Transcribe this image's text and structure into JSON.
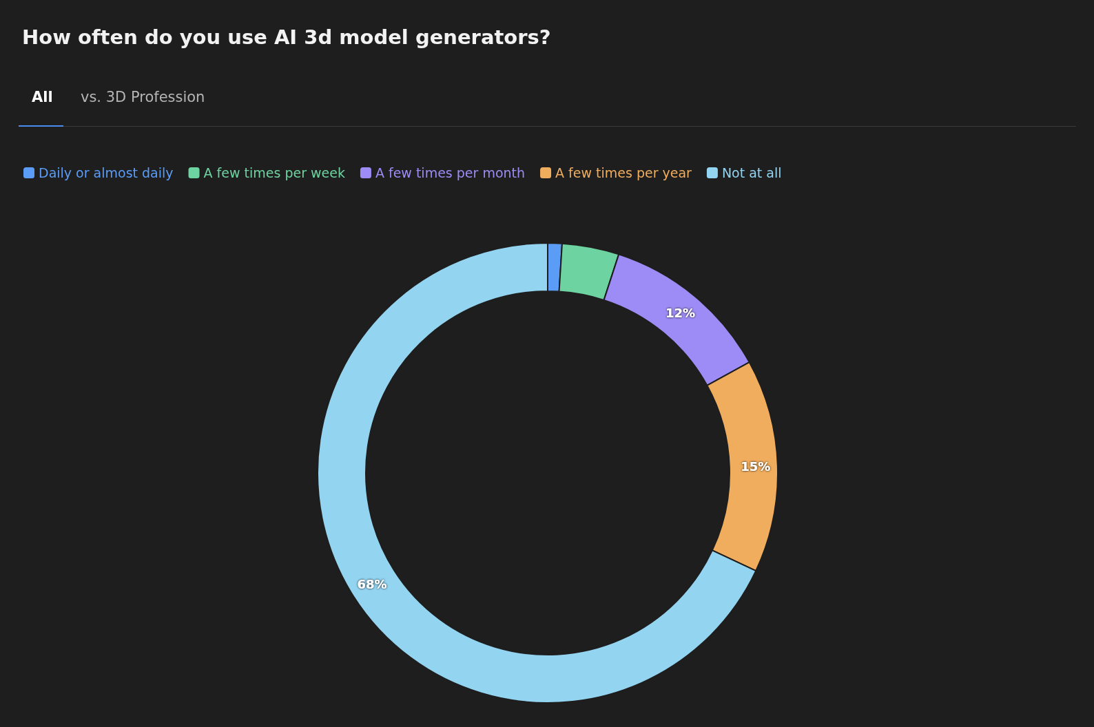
{
  "chart_data": {
    "type": "donut",
    "title": "How often do you use AI 3d model generators?",
    "annotations": [
      "All",
      "vs. 3D Profession"
    ],
    "categories": [
      "Daily or almost daily",
      "A few times per week",
      "A few times per month",
      "A few times per year",
      "Not at all"
    ],
    "values": [
      1,
      4,
      12,
      15,
      68
    ],
    "colors": [
      "#5b9cf6",
      "#6dd3a0",
      "#9d8cf5",
      "#f1ad5e",
      "#93d4f1"
    ],
    "value_labels": [
      null,
      null,
      "12%",
      "15%",
      "68%"
    ],
    "legend": "top left"
  }
}
